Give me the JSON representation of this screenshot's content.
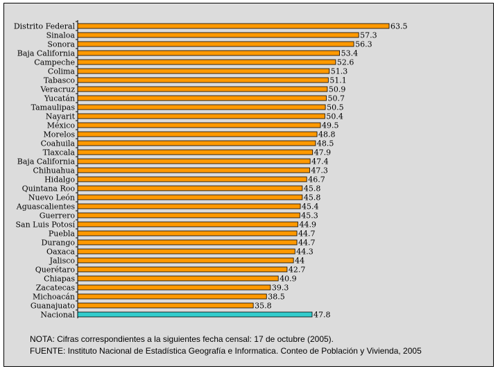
{
  "chart_data": {
    "type": "bar",
    "orientation": "horizontal",
    "title": "",
    "xlabel": "",
    "ylabel": "",
    "xlim": [
      0,
      65
    ],
    "grid": false,
    "categories": [
      "Distrito Federal",
      "Sinaloa",
      "Sonora",
      "Baja California",
      "Campeche",
      "Colima",
      "Tabasco",
      "Veracruz",
      "Yucatán",
      "Tamaulipas",
      "Nayarit",
      "México",
      "Morelos",
      "Coahuila",
      "Tlaxcala",
      "Baja California",
      "Chihuahua",
      "Hidalgo",
      "Quintana Roo",
      "Nuevo León",
      "Aguascalientes",
      "Guerrero",
      "San Luis Potosí",
      "Puebla",
      "Durango",
      "Oaxaca",
      "Jalisco",
      "Querétaro",
      "Chiapas",
      "Zacatecas",
      "Michoacán",
      "Guanajuato",
      "Nacional"
    ],
    "values": [
      63.5,
      57.3,
      56.3,
      53.4,
      52.6,
      51.3,
      51.1,
      50.9,
      50.7,
      50.5,
      50.4,
      49.5,
      48.8,
      48.5,
      47.9,
      47.4,
      47.3,
      46.7,
      45.8,
      45.8,
      45.4,
      45.3,
      44.9,
      44.7,
      44.7,
      44.3,
      44,
      42.7,
      40.9,
      39.3,
      38.5,
      35.8,
      47.8
    ],
    "value_labels": [
      "63.5",
      "57.3",
      "56.3",
      "53.4",
      "52.6",
      "51.3",
      "51.1",
      "50.9",
      "50.7",
      "50.5",
      "50.4",
      "49.5",
      "48.8",
      "48.5",
      "47.9",
      "47.4",
      "47.3",
      "46.7",
      "45.8",
      "45.8",
      "45.4",
      "45.3",
      "44.9",
      "44.7",
      "44.7",
      "44.3",
      "44",
      "42.7",
      "40.9",
      "39.3",
      "38.5",
      "35.8",
      "47.8"
    ],
    "colors": {
      "bar": "#ff9900",
      "highlight": "#33cccc",
      "background": "#dcdcdc"
    },
    "highlight_category": "Nacional"
  },
  "notes": {
    "nota": "NOTA: Cifras correspondientes a la siguientes fecha censal: 17 de octubre (2005).",
    "fuente": "FUENTE:  Instituto Nacional de Estadística Geografía e Informatica. Conteo de Población y Vivienda, 2005"
  }
}
